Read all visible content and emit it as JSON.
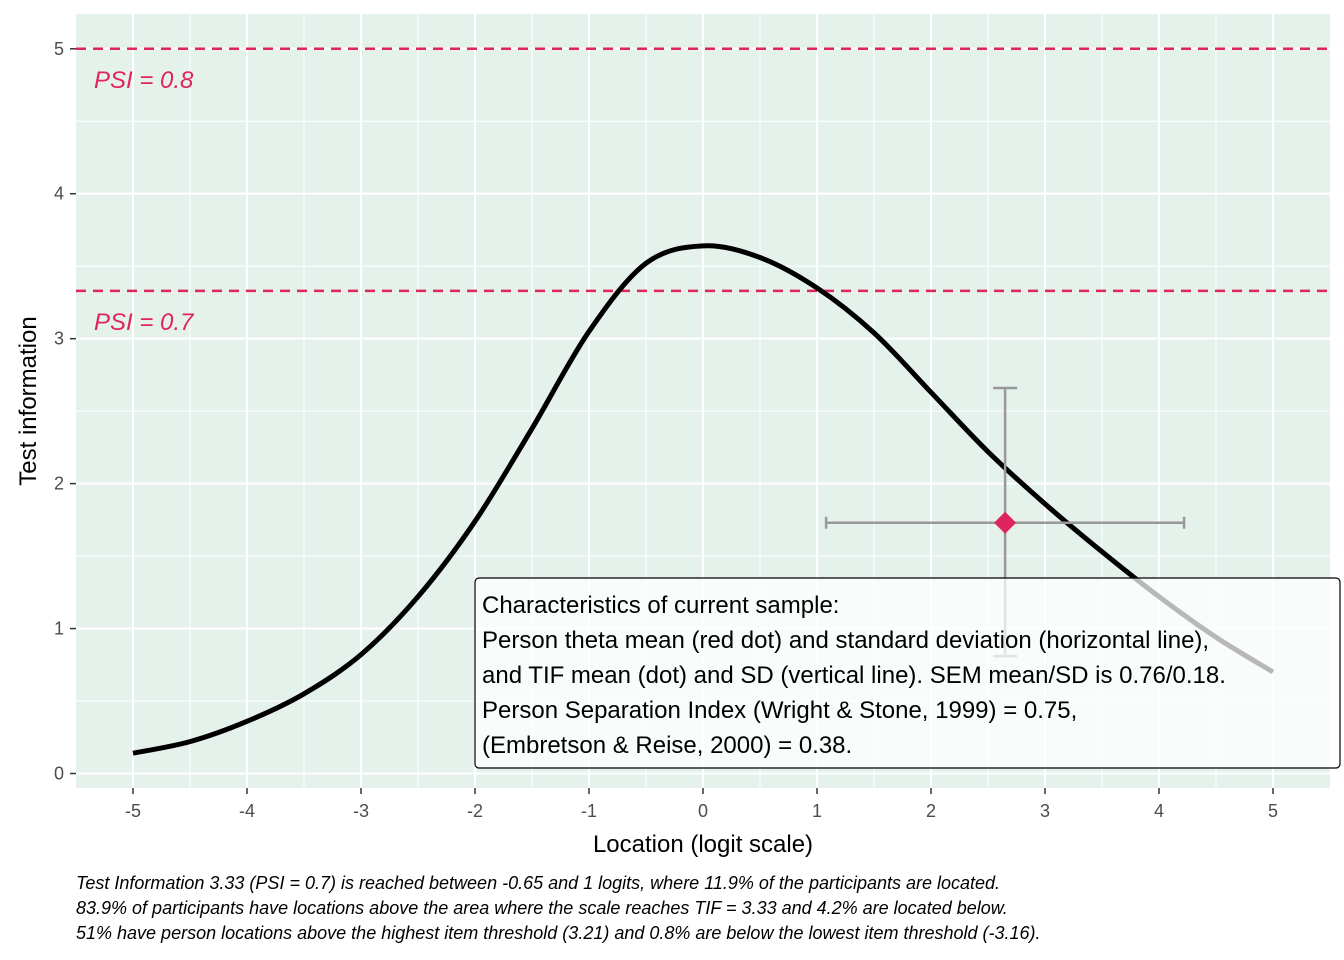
{
  "chart_data": {
    "type": "line",
    "xlabel": "Location (logit scale)",
    "ylabel": "Test information",
    "xlim": [
      -5.5,
      5.5
    ],
    "ylim": [
      -0.1,
      5.24
    ],
    "x_ticks": [
      -5,
      -4,
      -3,
      -2,
      -1,
      0,
      1,
      2,
      3,
      4,
      5
    ],
    "y_ticks": [
      0,
      1,
      2,
      3,
      4,
      5
    ],
    "grid": true,
    "background_color": "#e5f2eb",
    "accent_color": "#e0245e",
    "series": [
      {
        "x": [
          -5,
          -4.5,
          -4,
          -3.5,
          -3,
          -2.5,
          -2,
          -1.5,
          -1,
          -0.5,
          0,
          0.5,
          1,
          1.5,
          2,
          2.5,
          3,
          3.5,
          4,
          4.5,
          5
        ],
        "values": [
          0.14,
          0.22,
          0.36,
          0.55,
          0.82,
          1.22,
          1.74,
          2.38,
          3.05,
          3.52,
          3.64,
          3.56,
          3.35,
          3.04,
          2.63,
          2.22,
          1.86,
          1.53,
          1.22,
          0.94,
          0.7
        ],
        "color": "#000000"
      }
    ],
    "reference_lines": [
      {
        "y": 5.0,
        "label": "PSI = 0.8",
        "color": "#e0245e"
      },
      {
        "y": 3.33,
        "label": "PSI = 0.7",
        "color": "#e0245e"
      }
    ],
    "sample_point": {
      "x": 2.65,
      "y": 1.73,
      "x_sd_range": [
        1.08,
        4.22
      ],
      "y_sd_range": [
        0.81,
        2.66
      ],
      "color": "#e0245e",
      "errorbar_color": "#999999"
    },
    "annotation_box": {
      "lines": [
        "Characteristics of current sample:",
        "Person theta mean (red dot) and standard deviation (horizontal line),",
        "and TIF mean (dot) and SD (vertical line). SEM mean/SD is 0.76/0.18.",
        "Person Separation Index (Wright & Stone, 1999) = 0.75,",
        "(Embretson & Reise, 2000) = 0.38."
      ]
    }
  },
  "caption": [
    "Test Information 3.33 (PSI = 0.7) is reached between -0.65 and 1 logits, where 11.9% of the participants are located.",
    "83.9% of participants have locations above the area where the scale reaches TIF = 3.33 and 4.2% are located below.",
    "51% have person locations above the highest item threshold (3.21) and 0.8% are below the lowest item threshold (-3.16)."
  ]
}
